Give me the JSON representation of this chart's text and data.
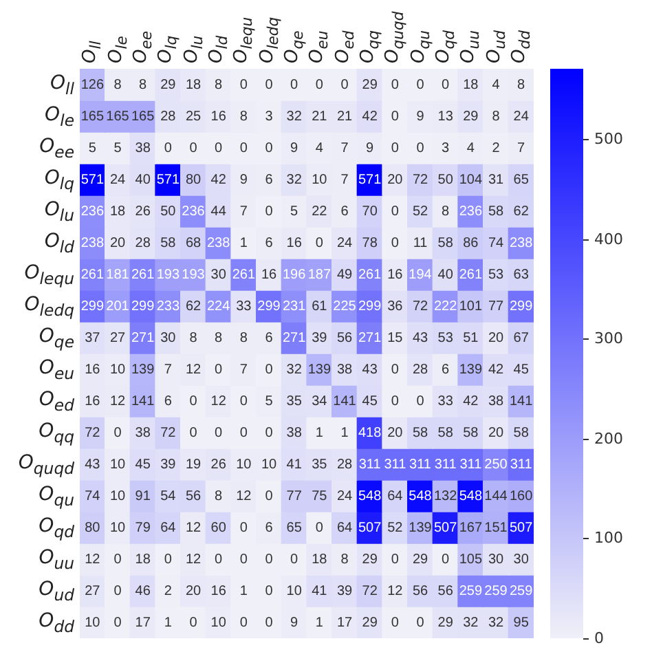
{
  "chart_data": {
    "type": "heatmap",
    "data_labels": true,
    "categories": [
      "O$_{ll}$",
      "O$_{le}$",
      "O$_{ee}$",
      "O$_{lq}$",
      "O$_{lu}$",
      "O$_{ld}$",
      "O$_{lequ}$",
      "O$_{ledq}$",
      "O$_{qe}$",
      "O$_{eu}$",
      "O$_{ed}$",
      "O$_{qq}$",
      "O$_{quqd}$",
      "O$_{qu}$",
      "O$_{qd}$",
      "O$_{uu}$",
      "O$_{ud}$",
      "O$_{dd}$"
    ],
    "y_categories": [
      "O$_{ll}$",
      "O$_{le}$",
      "O$_{ee}$",
      "O$_{lq}$",
      "O$_{lu}$",
      "O$_{ld}$",
      "O$_{lequ}$",
      "O$_{ledq}$",
      "O$_{qe}$",
      "O$_{eu}$",
      "O$_{ed}$",
      "O$_{qq}$",
      "O$_{quqd}$",
      "O$_{qu}$",
      "O$_{qd}$",
      "O$_{uu}$",
      "O$_{ud}$",
      "O$_{dd}$"
    ],
    "cells": [
      [
        126,
        8,
        8,
        29,
        18,
        8,
        0,
        0,
        0,
        0,
        0,
        29,
        0,
        0,
        0,
        18,
        4,
        8
      ],
      [
        165,
        165,
        165,
        28,
        25,
        16,
        8,
        3,
        32,
        21,
        21,
        42,
        0,
        9,
        13,
        29,
        8,
        24
      ],
      [
        5,
        5,
        38,
        0,
        0,
        0,
        0,
        0,
        9,
        4,
        7,
        9,
        0,
        0,
        3,
        4,
        2,
        7
      ],
      [
        571,
        24,
        40,
        571,
        80,
        42,
        9,
        6,
        32,
        10,
        7,
        571,
        20,
        72,
        50,
        104,
        31,
        65
      ],
      [
        236,
        18,
        26,
        50,
        236,
        44,
        7,
        0,
        5,
        22,
        6,
        70,
        0,
        52,
        8,
        236,
        58,
        62
      ],
      [
        238,
        20,
        28,
        58,
        68,
        238,
        1,
        6,
        16,
        0,
        24,
        78,
        0,
        11,
        58,
        86,
        74,
        238
      ],
      [
        261,
        181,
        261,
        193,
        193,
        30,
        261,
        16,
        196,
        187,
        49,
        261,
        16,
        194,
        40,
        261,
        53,
        63
      ],
      [
        299,
        201,
        299,
        233,
        62,
        224,
        33,
        299,
        231,
        61,
        225,
        299,
        36,
        72,
        222,
        101,
        77,
        299
      ],
      [
        37,
        27,
        271,
        30,
        8,
        8,
        8,
        6,
        271,
        39,
        56,
        271,
        15,
        43,
        53,
        51,
        20,
        67
      ],
      [
        16,
        10,
        139,
        7,
        12,
        0,
        7,
        0,
        32,
        139,
        38,
        43,
        0,
        28,
        6,
        139,
        42,
        45
      ],
      [
        16,
        12,
        141,
        6,
        0,
        12,
        0,
        5,
        35,
        34,
        141,
        45,
        0,
        0,
        33,
        42,
        38,
        141
      ],
      [
        72,
        0,
        38,
        72,
        0,
        0,
        0,
        0,
        38,
        1,
        1,
        418,
        20,
        58,
        58,
        58,
        20,
        58
      ],
      [
        43,
        10,
        45,
        39,
        19,
        26,
        10,
        10,
        41,
        35,
        28,
        311,
        311,
        311,
        311,
        311,
        250,
        311
      ],
      [
        74,
        10,
        91,
        54,
        56,
        8,
        12,
        0,
        77,
        75,
        24,
        548,
        64,
        548,
        132,
        548,
        144,
        160
      ],
      [
        80,
        10,
        79,
        64,
        12,
        60,
        0,
        6,
        65,
        0,
        64,
        507,
        52,
        139,
        507,
        167,
        151,
        507
      ],
      [
        12,
        0,
        18,
        0,
        12,
        0,
        0,
        0,
        0,
        18,
        8,
        29,
        0,
        29,
        0,
        105,
        30,
        30
      ],
      [
        27,
        0,
        46,
        2,
        20,
        16,
        1,
        0,
        10,
        41,
        39,
        72,
        12,
        56,
        56,
        259,
        259,
        259
      ],
      [
        10,
        0,
        17,
        1,
        0,
        10,
        0,
        0,
        9,
        1,
        17,
        29,
        0,
        0,
        29,
        32,
        32,
        95
      ]
    ],
    "clim": [
      0,
      571
    ],
    "cticks": [
      0,
      100,
      200,
      300,
      400,
      500
    ]
  }
}
